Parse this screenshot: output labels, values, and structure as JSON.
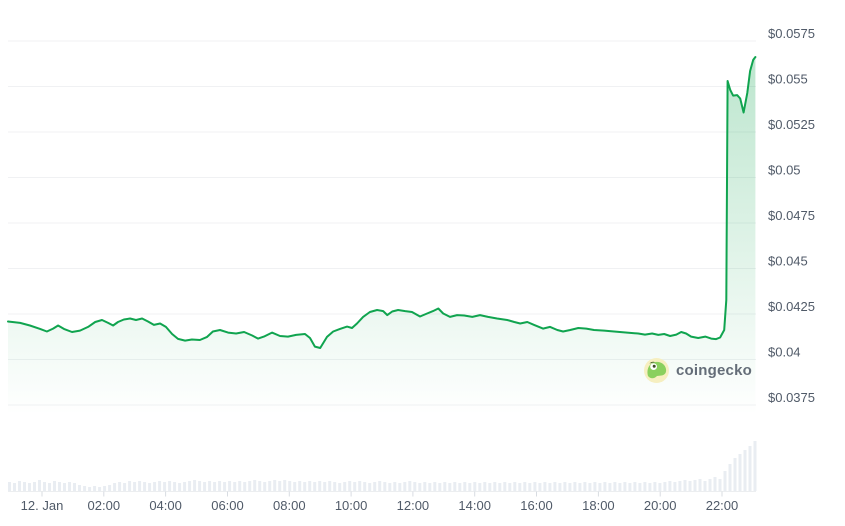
{
  "watermark": {
    "text": "coingecko"
  },
  "colors": {
    "line": "#10a44f",
    "fill_base": "#10a44f",
    "volume_bar": "#e9edf2",
    "grid_line": "#f0f1f3",
    "axis_line": "#eceef0",
    "tick_mark": "#d8dce2",
    "axis_text": "#505a68",
    "watermark_text": "#646d78",
    "logo_ring": "#f6efc0",
    "logo_body": "#8ad05e",
    "logo_dark": "#47632a"
  },
  "chart_data": {
    "type": "line",
    "title": "",
    "xlabel": "",
    "ylabel": "",
    "legend": "none",
    "grid": "horizontal-only",
    "x_range_hours": [
      -1.15,
      23.2
    ],
    "y_range": [
      0.0375,
      0.0575
    ],
    "x_axis": {
      "ticks": [
        {
          "hour": 0,
          "label": "12. Jan"
        },
        {
          "hour": 2,
          "label": "02:00"
        },
        {
          "hour": 4,
          "label": "04:00"
        },
        {
          "hour": 6,
          "label": "06:00"
        },
        {
          "hour": 8,
          "label": "08:00"
        },
        {
          "hour": 10,
          "label": "10:00"
        },
        {
          "hour": 12,
          "label": "12:00"
        },
        {
          "hour": 14,
          "label": "14:00"
        },
        {
          "hour": 16,
          "label": "16:00"
        },
        {
          "hour": 18,
          "label": "18:00"
        },
        {
          "hour": 20,
          "label": "20:00"
        },
        {
          "hour": 22,
          "label": "22:00"
        }
      ]
    },
    "y_axis": {
      "ticks": [
        {
          "value": 0.0575,
          "label": "$0.0575"
        },
        {
          "value": 0.055,
          "label": "$0.055"
        },
        {
          "value": 0.0525,
          "label": "$0.0525"
        },
        {
          "value": 0.05,
          "label": "$0.05"
        },
        {
          "value": 0.0475,
          "label": "$0.0475"
        },
        {
          "value": 0.045,
          "label": "$0.045"
        },
        {
          "value": 0.0425,
          "label": "$0.0425"
        },
        {
          "value": 0.04,
          "label": "$0.04"
        },
        {
          "value": 0.0375,
          "label": "$0.0375"
        }
      ]
    },
    "series": [
      {
        "name": "price-usd",
        "points": [
          [
            -1.1,
            0.04209
          ],
          [
            -0.71,
            0.04201
          ],
          [
            -0.39,
            0.04187
          ],
          [
            -0.06,
            0.04168
          ],
          [
            0.16,
            0.04154
          ],
          [
            0.36,
            0.0417
          ],
          [
            0.52,
            0.04187
          ],
          [
            0.71,
            0.04168
          ],
          [
            0.97,
            0.04151
          ],
          [
            1.23,
            0.04159
          ],
          [
            1.49,
            0.04179
          ],
          [
            1.72,
            0.04206
          ],
          [
            1.94,
            0.04217
          ],
          [
            2.14,
            0.04201
          ],
          [
            2.3,
            0.04187
          ],
          [
            2.46,
            0.04206
          ],
          [
            2.65,
            0.0422
          ],
          [
            2.85,
            0.04225
          ],
          [
            3.04,
            0.04217
          ],
          [
            3.24,
            0.04225
          ],
          [
            3.43,
            0.04209
          ],
          [
            3.62,
            0.0419
          ],
          [
            3.82,
            0.04198
          ],
          [
            4.01,
            0.04179
          ],
          [
            4.21,
            0.0414
          ],
          [
            4.4,
            0.04113
          ],
          [
            4.63,
            0.04104
          ],
          [
            4.85,
            0.0411
          ],
          [
            5.11,
            0.04107
          ],
          [
            5.34,
            0.04124
          ],
          [
            5.53,
            0.04154
          ],
          [
            5.76,
            0.04162
          ],
          [
            6.02,
            0.04148
          ],
          [
            6.28,
            0.04143
          ],
          [
            6.54,
            0.04151
          ],
          [
            6.8,
            0.04132
          ],
          [
            6.99,
            0.04115
          ],
          [
            7.18,
            0.04126
          ],
          [
            7.44,
            0.04148
          ],
          [
            7.7,
            0.04129
          ],
          [
            7.96,
            0.04126
          ],
          [
            8.22,
            0.04135
          ],
          [
            8.51,
            0.0414
          ],
          [
            8.67,
            0.04118
          ],
          [
            8.83,
            0.04071
          ],
          [
            9.0,
            0.04063
          ],
          [
            9.22,
            0.04124
          ],
          [
            9.42,
            0.04154
          ],
          [
            9.64,
            0.04168
          ],
          [
            9.87,
            0.04181
          ],
          [
            10.03,
            0.04173
          ],
          [
            10.19,
            0.04198
          ],
          [
            10.39,
            0.04234
          ],
          [
            10.61,
            0.04261
          ],
          [
            10.84,
            0.04272
          ],
          [
            11.04,
            0.04266
          ],
          [
            11.17,
            0.04244
          ],
          [
            11.33,
            0.04264
          ],
          [
            11.52,
            0.04272
          ],
          [
            11.75,
            0.04266
          ],
          [
            11.97,
            0.04261
          ],
          [
            12.23,
            0.04236
          ],
          [
            12.46,
            0.04253
          ],
          [
            12.65,
            0.04266
          ],
          [
            12.82,
            0.0428
          ],
          [
            12.98,
            0.04253
          ],
          [
            13.2,
            0.04234
          ],
          [
            13.43,
            0.04244
          ],
          [
            13.66,
            0.04242
          ],
          [
            13.92,
            0.04234
          ],
          [
            14.17,
            0.04244
          ],
          [
            14.43,
            0.04234
          ],
          [
            14.72,
            0.04225
          ],
          [
            15.05,
            0.04217
          ],
          [
            15.28,
            0.04206
          ],
          [
            15.47,
            0.04198
          ],
          [
            15.7,
            0.04206
          ],
          [
            15.92,
            0.0419
          ],
          [
            16.21,
            0.0417
          ],
          [
            16.44,
            0.04179
          ],
          [
            16.67,
            0.04162
          ],
          [
            16.86,
            0.04154
          ],
          [
            17.09,
            0.04162
          ],
          [
            17.35,
            0.04173
          ],
          [
            17.61,
            0.0417
          ],
          [
            17.86,
            0.04162
          ],
          [
            18.19,
            0.04159
          ],
          [
            18.51,
            0.04154
          ],
          [
            18.93,
            0.04148
          ],
          [
            19.29,
            0.04143
          ],
          [
            19.51,
            0.04137
          ],
          [
            19.74,
            0.04143
          ],
          [
            19.94,
            0.04135
          ],
          [
            20.13,
            0.0414
          ],
          [
            20.32,
            0.04129
          ],
          [
            20.52,
            0.04137
          ],
          [
            20.68,
            0.04151
          ],
          [
            20.84,
            0.04143
          ],
          [
            21.0,
            0.04126
          ],
          [
            21.23,
            0.04118
          ],
          [
            21.46,
            0.04126
          ],
          [
            21.65,
            0.04115
          ],
          [
            21.81,
            0.04112
          ],
          [
            21.94,
            0.04121
          ],
          [
            22.07,
            0.04162
          ],
          [
            22.14,
            0.04327
          ],
          [
            22.18,
            0.0553
          ],
          [
            22.27,
            0.0548
          ],
          [
            22.36,
            0.0545
          ],
          [
            22.49,
            0.05453
          ],
          [
            22.59,
            0.05434
          ],
          [
            22.7,
            0.05357
          ],
          [
            22.82,
            0.05465
          ],
          [
            22.91,
            0.05585
          ],
          [
            23.01,
            0.05646
          ],
          [
            23.08,
            0.05662
          ]
        ]
      }
    ],
    "volume_bars": {
      "units": "relative-px-height",
      "values": [
        9,
        8,
        10,
        9,
        8,
        9,
        11,
        9,
        8,
        10,
        9,
        8,
        9,
        8,
        6,
        5,
        4,
        5,
        4,
        5,
        6,
        8,
        9,
        8,
        10,
        9,
        10,
        9,
        8,
        9,
        10,
        9,
        10,
        9,
        8,
        9,
        10,
        11,
        10,
        9,
        10,
        9,
        10,
        9,
        10,
        9,
        10,
        9,
        10,
        11,
        10,
        9,
        10,
        11,
        10,
        11,
        10,
        9,
        10,
        9,
        10,
        9,
        10,
        9,
        10,
        9,
        8,
        9,
        10,
        9,
        10,
        9,
        8,
        9,
        10,
        9,
        8,
        9,
        8,
        9,
        10,
        9,
        8,
        9,
        8,
        9,
        8,
        9,
        8,
        9,
        8,
        9,
        8,
        9,
        8,
        9,
        8,
        9,
        8,
        9,
        8,
        9,
        8,
        9,
        8,
        9,
        8,
        9,
        8,
        9,
        8,
        9,
        8,
        9,
        8,
        9,
        8,
        9,
        8,
        9,
        8,
        9,
        8,
        9,
        8,
        9,
        8,
        9,
        8,
        9,
        8,
        9,
        10,
        9,
        10,
        11,
        10,
        11,
        12,
        10,
        12,
        14,
        12,
        20,
        27,
        33,
        37,
        41,
        45,
        50
      ]
    }
  }
}
